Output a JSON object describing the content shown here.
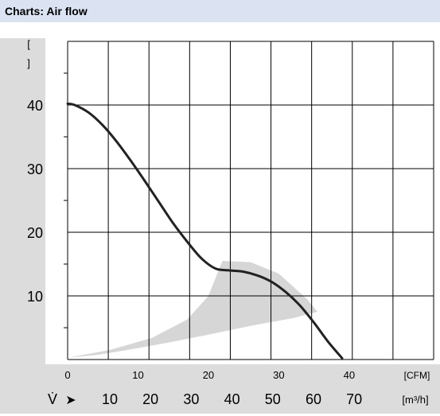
{
  "header": {
    "title": "Charts: Air flow"
  },
  "chart_data": {
    "type": "line",
    "title": "Charts: Air flow",
    "y_unit_label": "[ ]",
    "ylim": [
      0,
      50
    ],
    "yticks": [
      10,
      20,
      30,
      40
    ],
    "x_cfm": {
      "label": "[CFM]",
      "ticks": [
        0,
        10,
        20,
        30,
        40
      ],
      "range": [
        0,
        52
      ]
    },
    "x_m3h": {
      "symbol": "V̇",
      "arrow": "➤",
      "label": "[m³/h]",
      "ticks": [
        10,
        20,
        30,
        40,
        50,
        60,
        70
      ]
    },
    "grid": true,
    "series": [
      {
        "x": [
          0,
          1,
          3,
          5,
          7,
          9,
          11,
          13,
          15,
          17,
          19,
          21,
          23,
          25,
          27,
          29,
          31,
          33,
          35,
          37,
          39
        ],
        "y": [
          40.2,
          40,
          38.8,
          36.8,
          34.2,
          31.2,
          28,
          24.7,
          21.4,
          18.5,
          15.9,
          14.3,
          14,
          13.8,
          13.2,
          12.2,
          10.6,
          8.5,
          5.8,
          2.8,
          0.2
        ]
      }
    ],
    "operating_region": {
      "color": "#d6d6d6",
      "upper": {
        "x": [
          0,
          6,
          12,
          17,
          20,
          22,
          26,
          30,
          34,
          35.5
        ],
        "y": [
          0.3,
          1.5,
          3.4,
          6.3,
          10,
          15.5,
          15.3,
          13.5,
          9.5,
          7.5
        ]
      },
      "lower": {
        "x": [
          35.5,
          32,
          26,
          20,
          14,
          8,
          4,
          0
        ],
        "y": [
          7.5,
          6.5,
          5.3,
          3.9,
          2.6,
          1.4,
          0.7,
          0.3
        ]
      }
    },
    "colors": {
      "curve": "#222222",
      "grid": "#000000",
      "axis_band": "#dcdcdc",
      "title_bar": "#dbe3f3"
    }
  }
}
